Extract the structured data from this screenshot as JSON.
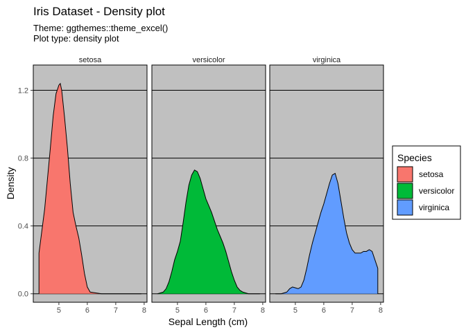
{
  "chart_data": {
    "type": "area",
    "title": "Iris Dataset - Density plot",
    "subtitle_lines": [
      "Theme: ggthemes::theme_excel()",
      "Plot type: density plot"
    ],
    "xlabel": "Sepal Length (cm)",
    "ylabel": "Density",
    "xlim": [
      4.1,
      8.1
    ],
    "ylim": [
      -0.05,
      1.3
    ],
    "x_ticks": [
      5,
      6,
      7,
      8
    ],
    "y_ticks": [
      0.0,
      0.4,
      0.8,
      1.2
    ],
    "y_tick_labels": [
      "0.0",
      "0.4",
      "0.8",
      "1.2"
    ],
    "grid": "horizontal major lines",
    "legend": {
      "title": "Species",
      "placement": "right",
      "entries": [
        {
          "label": "setosa",
          "color": "#F8766D"
        },
        {
          "label": "versicolor",
          "color": "#00BA38"
        },
        {
          "label": "virginica",
          "color": "#619CFF"
        }
      ]
    },
    "facets": [
      {
        "name": "setosa",
        "color": "#F8766D",
        "x": [
          4.3,
          4.4,
          4.5,
          4.6,
          4.7,
          4.8,
          4.9,
          5.0,
          5.05,
          5.1,
          5.2,
          5.3,
          5.4,
          5.5,
          5.6,
          5.7,
          5.8,
          5.9,
          6.0,
          6.1,
          6.5,
          7.0,
          7.5,
          7.9
        ],
        "y": [
          0.24,
          0.37,
          0.5,
          0.68,
          0.86,
          1.05,
          1.18,
          1.23,
          1.24,
          1.2,
          1.04,
          0.86,
          0.65,
          0.48,
          0.4,
          0.33,
          0.23,
          0.12,
          0.04,
          0.01,
          0.0,
          0.0,
          0.0,
          0.0
        ]
      },
      {
        "name": "versicolor",
        "color": "#00BA38",
        "x": [
          4.3,
          4.5,
          4.6,
          4.7,
          4.8,
          4.9,
          5.0,
          5.1,
          5.2,
          5.3,
          5.4,
          5.5,
          5.6,
          5.7,
          5.8,
          5.9,
          6.0,
          6.1,
          6.2,
          6.3,
          6.4,
          6.5,
          6.6,
          6.7,
          6.8,
          6.9,
          7.0,
          7.1,
          7.2,
          7.3,
          7.5,
          7.9
        ],
        "y": [
          0.0,
          0.01,
          0.03,
          0.07,
          0.13,
          0.2,
          0.25,
          0.31,
          0.42,
          0.54,
          0.64,
          0.7,
          0.73,
          0.72,
          0.68,
          0.62,
          0.56,
          0.52,
          0.48,
          0.43,
          0.38,
          0.34,
          0.3,
          0.25,
          0.19,
          0.13,
          0.08,
          0.04,
          0.02,
          0.01,
          0.0,
          0.0
        ]
      },
      {
        "name": "virginica",
        "color": "#619CFF",
        "x": [
          4.3,
          4.5,
          4.7,
          4.8,
          4.9,
          5.0,
          5.1,
          5.2,
          5.3,
          5.4,
          5.5,
          5.6,
          5.7,
          5.8,
          5.9,
          6.0,
          6.1,
          6.2,
          6.3,
          6.4,
          6.5,
          6.6,
          6.7,
          6.8,
          6.9,
          7.0,
          7.1,
          7.2,
          7.3,
          7.4,
          7.5,
          7.6,
          7.7,
          7.8,
          7.9
        ],
        "y": [
          0.0,
          0.0,
          0.01,
          0.03,
          0.04,
          0.035,
          0.03,
          0.04,
          0.08,
          0.15,
          0.23,
          0.3,
          0.36,
          0.42,
          0.48,
          0.53,
          0.59,
          0.65,
          0.7,
          0.71,
          0.65,
          0.55,
          0.45,
          0.36,
          0.3,
          0.26,
          0.24,
          0.24,
          0.24,
          0.25,
          0.25,
          0.26,
          0.25,
          0.2,
          0.15
        ]
      }
    ]
  }
}
